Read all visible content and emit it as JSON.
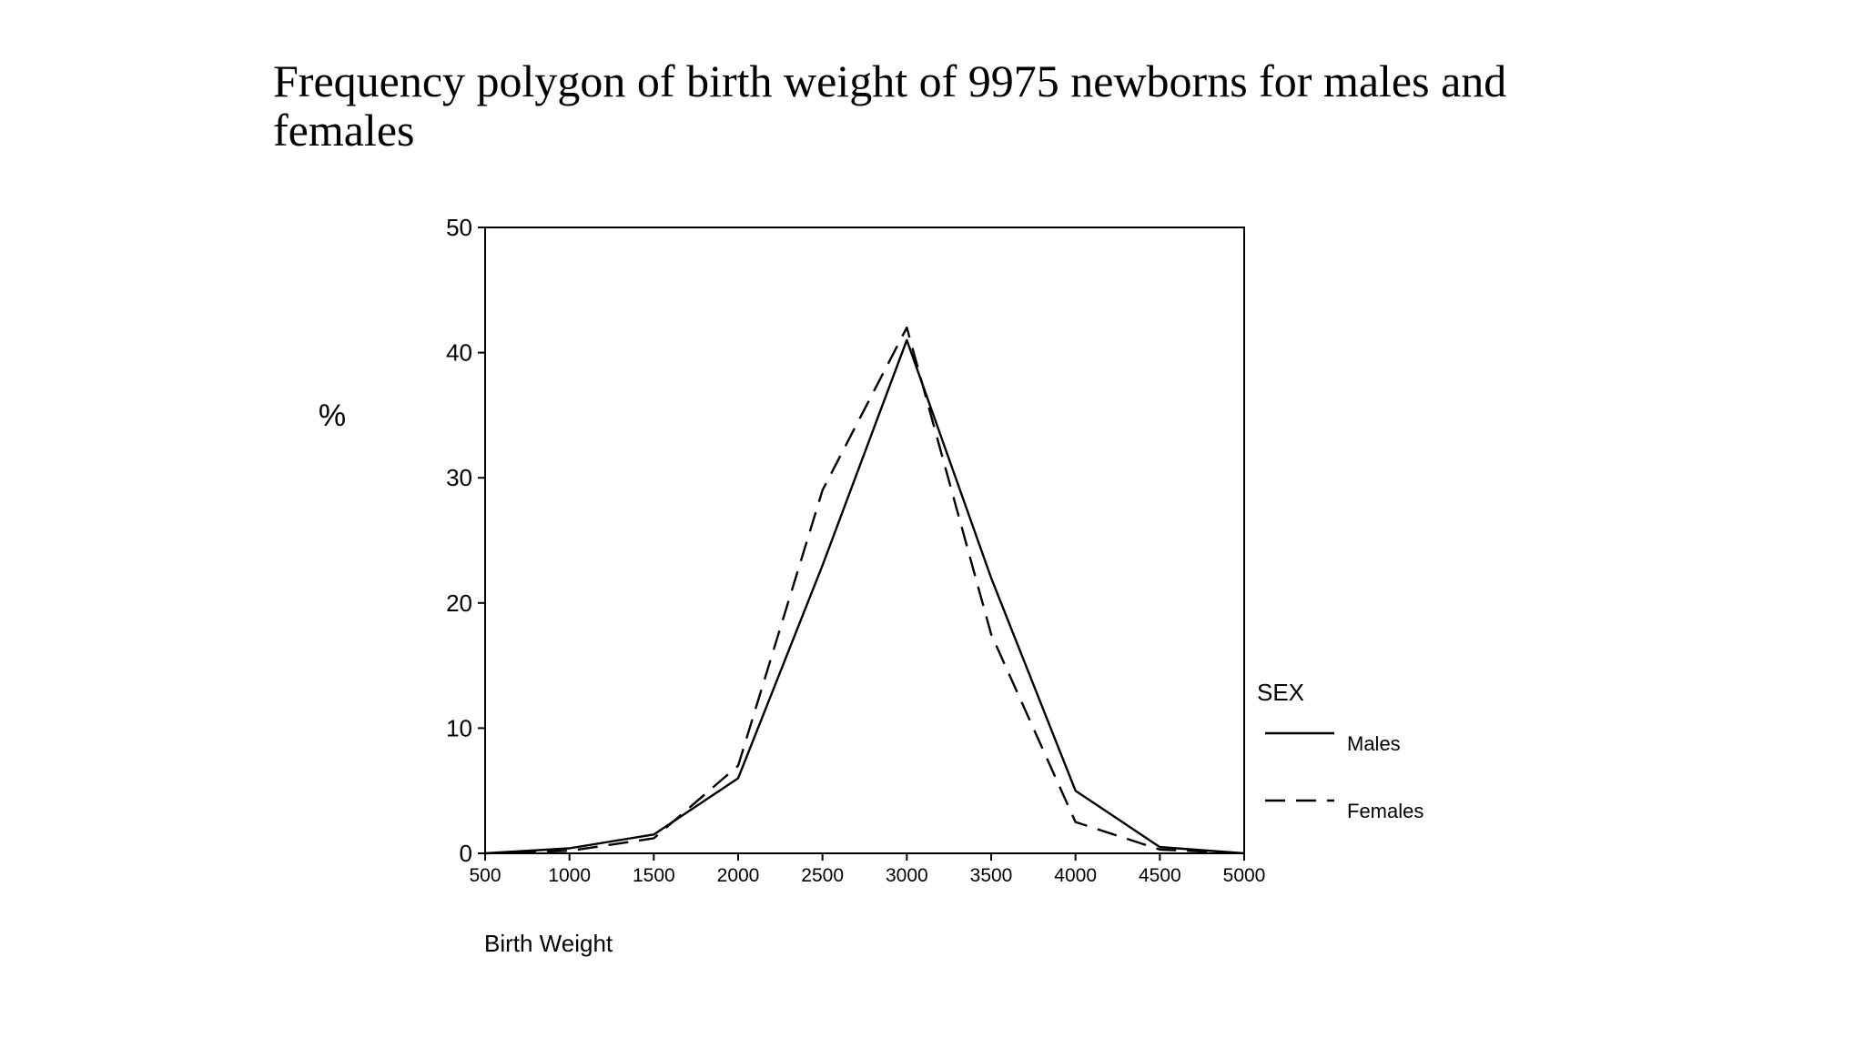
{
  "slide": {
    "title": "Frequency polygon of birth weight of 9975 newborns for males and females"
  },
  "chart_data": {
    "type": "line",
    "title": "",
    "xlabel": "Birth Weight",
    "ylabel": "%",
    "xlim": [
      500,
      5000
    ],
    "ylim": [
      0,
      50
    ],
    "x_ticks": [
      500,
      1000,
      1500,
      2000,
      2500,
      3000,
      3500,
      4000,
      4500,
      5000
    ],
    "y_ticks": [
      0,
      10,
      20,
      30,
      40,
      50
    ],
    "grid": false,
    "legend": {
      "title": "SEX",
      "placement": "right"
    },
    "series": [
      {
        "name": "Males",
        "style": "solid",
        "color": "#000000",
        "x": [
          500,
          1000,
          1500,
          2000,
          2500,
          3000,
          3500,
          4000,
          4500,
          5000
        ],
        "y": [
          0,
          0.4,
          1.5,
          6,
          23,
          41,
          22,
          5,
          0.5,
          0
        ]
      },
      {
        "name": "Females",
        "style": "dashed",
        "color": "#000000",
        "x": [
          500,
          1000,
          1500,
          2000,
          2500,
          3000,
          3500,
          4000,
          4500,
          5000
        ],
        "y": [
          0,
          0.2,
          1.2,
          7,
          29,
          42,
          17.5,
          2.5,
          0.3,
          0
        ]
      }
    ]
  }
}
